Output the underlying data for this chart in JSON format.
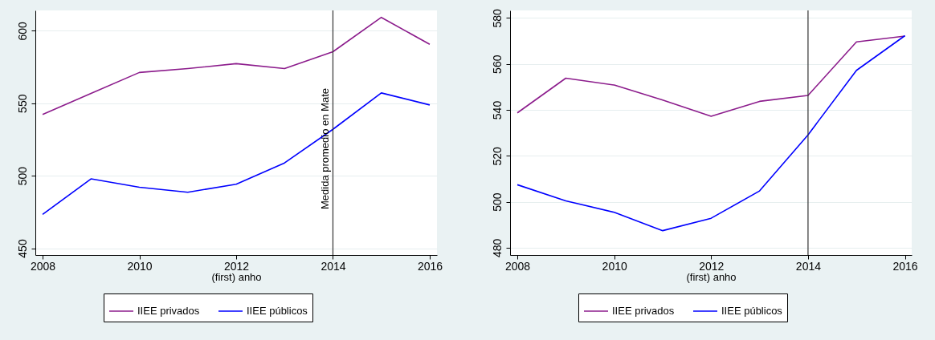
{
  "chart_data": [
    {
      "type": "line",
      "xlabel": "(first) anho",
      "x": [
        2008,
        2009,
        2010,
        2011,
        2012,
        2013,
        2014,
        2015,
        2016
      ],
      "series": [
        {
          "name": "IIEE privados",
          "color": "#8c1c8c",
          "values": [
            542.2,
            556.7,
            571.2,
            573.9,
            577.3,
            573.9,
            585.5,
            609.2,
            590.6
          ]
        },
        {
          "name": "IIEE públicos",
          "color": "#0000ff",
          "values": [
            473.3,
            497.8,
            492,
            488.6,
            494.1,
            508.8,
            532,
            557.1,
            548.8
          ]
        }
      ],
      "xlim": [
        2007.85,
        2016.15
      ],
      "xticks": [
        2008,
        2010,
        2012,
        2014,
        2016
      ],
      "ylim": [
        445.3,
        614
      ],
      "yticks": [
        450,
        500,
        550,
        600
      ],
      "ref_lines": [
        {
          "axis": "x",
          "value": 2014,
          "label": "Medida promedio en Mate"
        }
      ],
      "grid": "y",
      "legend": "bottom"
    },
    {
      "type": "line",
      "xlabel": "(first) anho",
      "x": [
        2008,
        2009,
        2010,
        2011,
        2012,
        2013,
        2014,
        2015,
        2016
      ],
      "series": [
        {
          "name": "IIEE privados",
          "color": "#8c1c8c",
          "values": [
            538.7,
            553.8,
            550.8,
            544.3,
            537.2,
            543.7,
            546.3,
            569.6,
            572.1
          ]
        },
        {
          "name": "IIEE públicos",
          "color": "#0000ff",
          "values": [
            507.4,
            500.4,
            495.4,
            487.4,
            492.8,
            504.7,
            529.1,
            557.2,
            572.3
          ]
        }
      ],
      "xlim": [
        2007.85,
        2016.14
      ],
      "xticks": [
        2008,
        2010,
        2012,
        2014,
        2016
      ],
      "ylim": [
        476.8,
        583.3
      ],
      "yticks": [
        480,
        500,
        520,
        540,
        560,
        580
      ],
      "ref_lines": [
        {
          "axis": "x",
          "value": 2014
        }
      ],
      "grid": "y",
      "legend": "bottom"
    }
  ]
}
